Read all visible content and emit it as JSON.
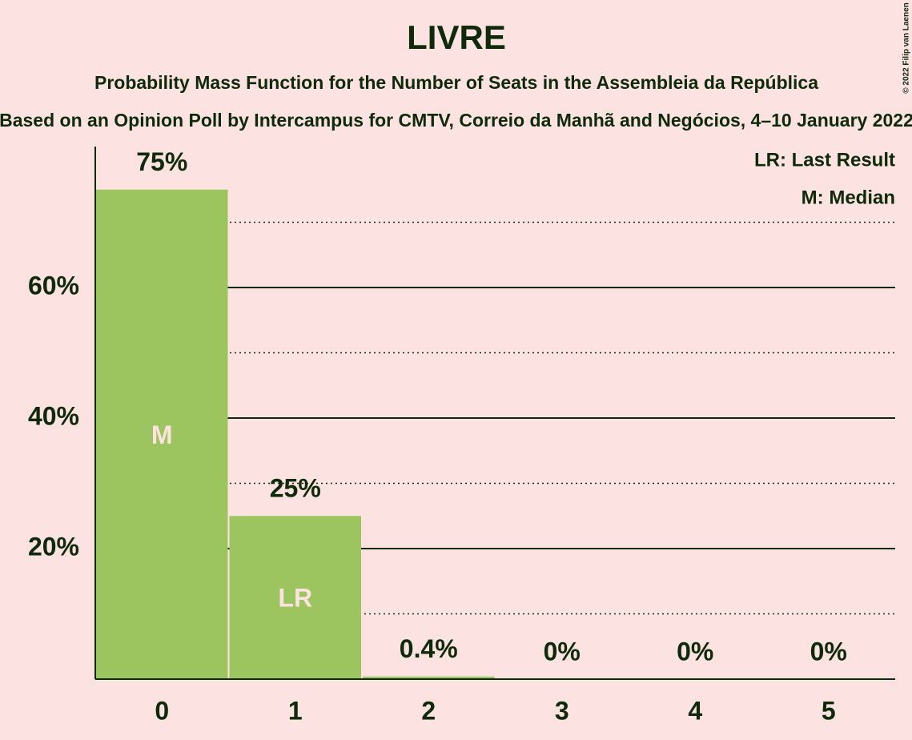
{
  "chart_data": {
    "type": "bar",
    "title": "LIVRE",
    "subtitle": "Probability Mass Function for the Number of Seats in the Assembleia da República",
    "subtitle2": "Based on an Opinion Poll by Intercampus for CMTV, Correio da Manhã and Negócios, 4–10 January 2022",
    "copyright": "© 2022 Filip van Laenen",
    "legend": [
      "LR: Last Result",
      "M: Median"
    ],
    "categories": [
      "0",
      "1",
      "2",
      "3",
      "4",
      "5"
    ],
    "values": [
      75,
      25,
      0.4,
      0,
      0,
      0
    ],
    "value_labels": [
      "75%",
      "25%",
      "0.4%",
      "0%",
      "0%",
      "0%"
    ],
    "bar_annotations": [
      "M",
      "LR",
      null,
      null,
      null,
      null
    ],
    "color": "#9dc55f",
    "ylim": [
      0,
      81.6
    ],
    "yticks": [
      {
        "value": 20,
        "label": "20%"
      },
      {
        "value": 40,
        "label": "40%"
      },
      {
        "value": 60,
        "label": "60%"
      }
    ],
    "minor_gridlines": [
      10,
      30,
      50,
      70
    ],
    "grid": true
  }
}
